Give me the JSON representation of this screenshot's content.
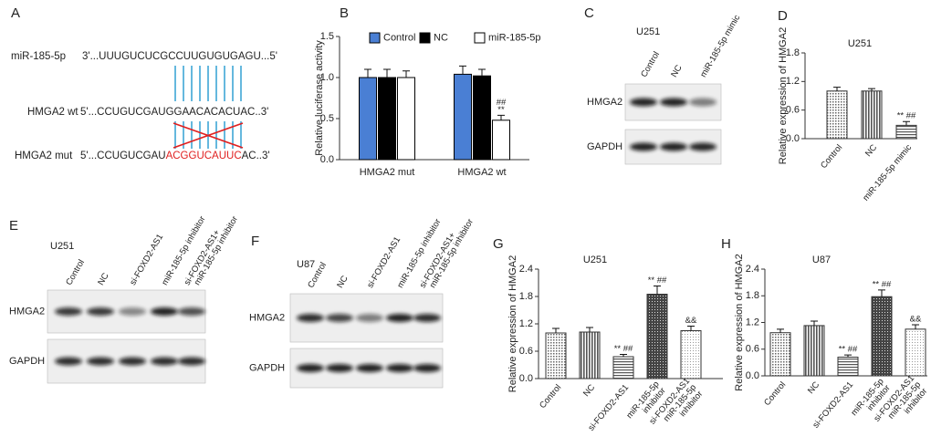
{
  "panel_labels": [
    "A",
    "B",
    "C",
    "D",
    "E",
    "F",
    "G",
    "H"
  ],
  "sequences": {
    "mirna": {
      "name": "miR-185-5p",
      "sequence": "3'...UUUGUCUCGCCUUGUGUGAGU...5'"
    },
    "wt": {
      "name": "HMGA2 wt",
      "sequence": "5'...CCUGUCGAUGGAACACACUAC..3'"
    },
    "mut": {
      "name": "HMGA2 mut",
      "prefix": "5'...CCUGUCGAU",
      "mutated": "ACGGUCAUUC",
      "suffix": "AC..3'",
      "mutated_color": "#e02020"
    }
  },
  "blots": [
    {
      "cell_line": "U251",
      "lanes": [
        "Control",
        "NC",
        "miR-185-5p mimic"
      ],
      "rows": [
        "HMGA2",
        "GAPDH"
      ]
    },
    {
      "cell_line": "U251",
      "lanes": [
        "Control",
        "NC",
        "si-FOXD2-AS1",
        "miR-185-5p inhibitor",
        [
          "si-FOXD2-AS1+",
          "miR-185-5p inhibitor"
        ]
      ],
      "rows": [
        "HMGA2",
        "GAPDH"
      ]
    },
    {
      "cell_line": "U87",
      "lanes": [
        "Control",
        "NC",
        "si-FOXD2-AS1",
        "miR-185-5p inhibitor",
        [
          "si-FOXD2-AS1+",
          "miR-185-5p inhibitor"
        ]
      ],
      "rows": [
        "HMGA2",
        "GAPDH"
      ]
    }
  ],
  "chart_data": [
    {
      "type": "bar",
      "y_label": "Relative luciferase activity",
      "categories": [
        "HMGA2 mut",
        "HMGA2 wt"
      ],
      "series": [
        {
          "name": "Control",
          "color": "#4a7fd4",
          "values": [
            1.0,
            1.04
          ],
          "errors": [
            0.1,
            0.1
          ]
        },
        {
          "name": "NC",
          "color": "#000000",
          "values": [
            1.0,
            1.02
          ],
          "errors": [
            0.1,
            0.08
          ]
        },
        {
          "name": "miR-185-5p",
          "color": "#ffffff",
          "values": [
            1.0,
            0.48
          ],
          "errors": [
            0.08,
            0.06
          ],
          "annotations": [
            null,
            [
              "##",
              "**"
            ]
          ]
        }
      ],
      "ylim": [
        0,
        1.5
      ],
      "yticks": [
        {
          "value": 0,
          "label": "0.0"
        },
        0.5,
        {
          "value": 1,
          "label": "1.0"
        },
        1.5
      ]
    },
    {
      "type": "bar",
      "title": "U251",
      "y_label": "Relative expression of HMGA2",
      "categories": [
        "Control",
        "NC",
        "miR-185-5p mimic"
      ],
      "values": [
        1.0,
        1.0,
        0.28
      ],
      "errors": [
        0.08,
        0.05,
        0.08
      ],
      "annotations": [
        null,
        null,
        "** ##"
      ],
      "patterns": [
        "dots",
        "vlines",
        "hlines"
      ],
      "ylim": [
        0,
        1.8
      ],
      "yticks": [
        {
          "value": 0,
          "label": "0.0"
        },
        0.6,
        1.2,
        1.8
      ]
    },
    {
      "type": "bar",
      "title": "U251",
      "y_label": "Relative expression of HMGA2",
      "categories": [
        "Control",
        "NC",
        "si-FOXD2-AS1",
        [
          "miR-185-5p",
          "inhibitor"
        ],
        [
          "si-FOXD2-AS1",
          "miR-185-5p",
          "inhibitor"
        ]
      ],
      "values": [
        1.0,
        1.02,
        0.48,
        1.85,
        1.05
      ],
      "errors": [
        0.1,
        0.1,
        0.05,
        0.18,
        0.1
      ],
      "annotations": [
        null,
        null,
        "** ##",
        "** ##",
        "&&"
      ],
      "patterns": [
        "dots",
        "vlines",
        "hlines",
        "cross",
        "dotslight"
      ],
      "ylim": [
        0,
        2.4
      ],
      "yticks": [
        {
          "value": 0,
          "label": "0.0"
        },
        0.6,
        1.2,
        1.8,
        2.4
      ]
    },
    {
      "type": "bar",
      "title": "U87",
      "y_label": "Relative expression of HMGA2",
      "categories": [
        "Control",
        "NC",
        "si-FOXD2-AS1",
        [
          "miR-185-5p",
          "inhibitor"
        ],
        [
          "si-FOXD2-AS1",
          "miR-185-5p",
          "inhibitor"
        ]
      ],
      "values": [
        0.97,
        1.13,
        0.42,
        1.78,
        1.05
      ],
      "errors": [
        0.08,
        0.1,
        0.05,
        0.15,
        0.1
      ],
      "annotations": [
        null,
        null,
        "** ##",
        "** ##",
        "&&"
      ],
      "patterns": [
        "dots",
        "vlines",
        "hlines",
        "cross",
        "dotslight"
      ],
      "ylim": [
        0,
        2.4
      ],
      "yticks": [
        {
          "value": 0,
          "label": "0.0"
        },
        0.6,
        1.2,
        1.8,
        2.4
      ]
    }
  ]
}
